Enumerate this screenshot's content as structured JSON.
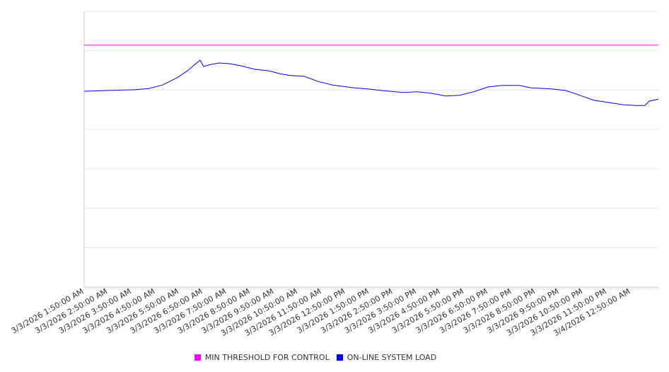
{
  "chart_data": {
    "type": "line",
    "title": "",
    "xlabel": "",
    "ylabel": "",
    "ylim": [
      0,
      7
    ],
    "grid": true,
    "legend_position": "bottom",
    "x_tick_labels": [
      "3/3/2026 1:50:00 AM",
      "3/3/2026 2:50:00 AM",
      "3/3/2026 3:50:00 AM",
      "3/3/2026 4:50:00 AM",
      "3/3/2026 5:50:00 AM",
      "3/3/2026 6:50:00 AM",
      "3/3/2026 7:50:00 AM",
      "3/3/2026 8:50:00 AM",
      "3/3/2026 9:50:00 AM",
      "3/3/2026 10:50:00 AM",
      "3/3/2026 11:50:00 AM",
      "3/3/2026 12:50:00 PM",
      "3/3/2026 1:50:00 PM",
      "3/3/2026 2:50:00 PM",
      "3/3/2026 3:50:00 PM",
      "3/3/2026 4:50:00 PM",
      "3/3/2026 5:50:00 PM",
      "3/3/2026 6:50:00 PM",
      "3/3/2026 7:50:00 PM",
      "3/3/2026 8:50:00 PM",
      "3/3/2026 9:50:00 PM",
      "3/3/2026 10:50:00 PM",
      "3/3/2026 11:50:00 PM",
      "3/4/2026 12:50:00 AM"
    ],
    "x_hours_range": [
      0,
      24.17
    ],
    "series": [
      {
        "name": "MIN THRESHOLD FOR CONTROL",
        "color": "#ff00ff",
        "x_hours": [
          0,
          24.17
        ],
        "values": [
          6.14,
          6.14
        ]
      },
      {
        "name": "ON-LINE SYSTEM LOAD",
        "color": "#0000ff",
        "x_hours": [
          0,
          0.92,
          2.11,
          2.71,
          3.3,
          3.9,
          4.35,
          4.64,
          4.88,
          5.03,
          5.24,
          5.68,
          6.13,
          6.58,
          7.17,
          7.77,
          8.21,
          8.66,
          9.26,
          9.85,
          10.45,
          11.34,
          11.93,
          12.53,
          13.42,
          14.02,
          14.61,
          15.21,
          15.8,
          16.4,
          16.99,
          17.59,
          18.33,
          18.78,
          19.67,
          20.27,
          20.86,
          21.46,
          22.05,
          22.65,
          23.24,
          23.6,
          23.78,
          24.17
        ],
        "values": [
          4.97,
          4.99,
          5.01,
          5.04,
          5.13,
          5.31,
          5.49,
          5.64,
          5.76,
          5.6,
          5.64,
          5.69,
          5.67,
          5.62,
          5.53,
          5.49,
          5.42,
          5.37,
          5.35,
          5.22,
          5.13,
          5.06,
          5.03,
          4.99,
          4.94,
          4.96,
          4.92,
          4.85,
          4.87,
          4.96,
          5.08,
          5.12,
          5.12,
          5.06,
          5.03,
          4.99,
          4.87,
          4.74,
          4.69,
          4.63,
          4.61,
          4.61,
          4.72,
          4.77
        ]
      }
    ]
  }
}
